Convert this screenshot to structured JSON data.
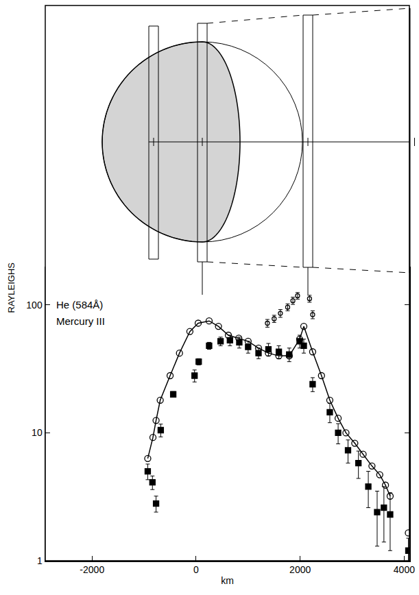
{
  "chart_data": {
    "type": "scatter",
    "x_label": "km",
    "y_label": "RAYLEIGHS",
    "annotations": [
      "He (584Å)",
      "Mercury III"
    ],
    "log": "y",
    "grid": false,
    "xlim": [
      -2900,
      4100
    ],
    "xticks": [
      -2000,
      0,
      2000,
      4000
    ],
    "ylim": [
      1,
      200
    ],
    "yticks": [
      1,
      10,
      100
    ],
    "series": [
      {
        "color": "#000000",
        "marker": "open circle",
        "line_style": "solid",
        "x": [
          -930,
          -830,
          -770,
          -690,
          -500,
          -320,
          -120,
          40,
          250,
          430,
          620,
          820,
          1000,
          1200,
          1390,
          1590,
          1790,
          1990,
          2070,
          2240,
          2410,
          2570,
          2730,
          2880,
          3050,
          3210,
          3380,
          3530,
          3640,
          3730,
          null,
          4080
        ],
        "values": [
          6.3,
          9.2,
          12.5,
          18,
          28,
          42,
          62,
          72,
          75,
          68,
          58,
          55,
          52,
          46,
          42,
          40,
          40,
          54,
          68,
          43,
          28,
          18,
          13,
          10,
          8.3,
          6.8,
          5.5,
          4.7,
          3.9,
          3.2,
          null,
          1.65
        ]
      },
      {
        "color": "#000000",
        "marker": "filled square",
        "line_style": "none",
        "x": [
          -930,
          -840,
          -770,
          -680,
          -440,
          -30,
          50,
          250,
          470,
          650,
          830,
          1000,
          1200,
          1390,
          1590,
          1790,
          1990,
          2070,
          2240,
          2570,
          2730,
          2920,
          3120,
          3310,
          3480,
          3610,
          3730,
          4080
        ],
        "values": [
          5,
          4.1,
          2.8,
          10.5,
          20,
          28,
          36,
          48,
          52,
          53,
          51,
          47,
          42,
          45,
          43,
          41,
          52,
          48,
          24,
          14.5,
          10,
          7.3,
          5.8,
          3.8,
          2.4,
          2.6,
          2.3,
          1.2
        ],
        "errors": [
          0.7,
          0.5,
          0.4,
          1.2,
          1,
          3,
          2,
          3,
          4,
          5,
          5,
          5,
          4,
          5,
          5,
          5,
          6,
          6,
          3,
          2.5,
          1.8,
          1.5,
          1.4,
          1.2,
          1.1,
          1.2,
          1.1,
          0.3
        ]
      },
      {
        "color": "#000000",
        "marker": "small open circle",
        "line_style": "none",
        "x": [
          1370,
          1500,
          1620,
          1760,
          1860,
          1950,
          2180,
          2240
        ],
        "values": [
          72,
          78,
          86,
          96,
          108,
          118,
          112,
          84
        ],
        "errors": [
          5,
          5,
          6,
          6,
          7,
          7,
          7,
          6
        ]
      }
    ]
  }
}
